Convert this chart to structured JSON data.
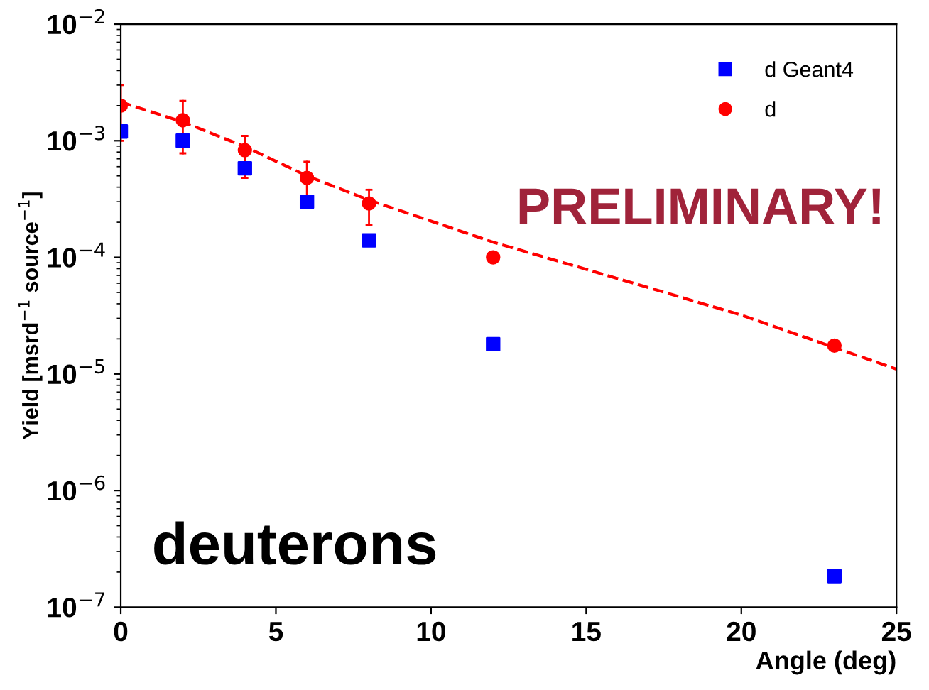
{
  "chart_data": {
    "type": "scatter",
    "xlabel": "Angle (deg)",
    "ylabel": "Yield [msrd$^{−1}$ source$^{−1}$]",
    "annotations": [
      "PRELIMINARY!",
      "deuterons"
    ],
    "log": "y",
    "xlim": [
      0,
      25
    ],
    "xticks": [
      0,
      5,
      10,
      15,
      20,
      25
    ],
    "ylim": [
      1e-07,
      0.01
    ],
    "yticks": [
      {
        "value": 1e-07,
        "label": "10$^{−7}$"
      },
      {
        "value": 1e-06,
        "label": "10$^{−6}$"
      },
      {
        "value": 1e-05,
        "label": "10$^{−5}$"
      },
      {
        "value": 0.0001,
        "label": "10$^{−4}$"
      },
      {
        "value": 0.001,
        "label": "10$^{−3}$"
      },
      {
        "value": 0.01,
        "label": "10$^{−2}$"
      }
    ],
    "grid": false,
    "legend": "top right",
    "series": [
      {
        "name": "d Geant4",
        "color": "#0000ff",
        "marker": "square",
        "x": [
          0,
          2,
          4,
          6,
          8,
          12,
          23
        ],
        "values": [
          0.0012,
          0.001,
          0.00058,
          0.0003,
          0.00014,
          1.8e-05,
          1.85e-07
        ]
      },
      {
        "name": "d",
        "color": "#ff0000",
        "marker": "circle",
        "x": [
          0,
          2,
          4,
          6,
          8,
          12,
          23
        ],
        "values": [
          0.002,
          0.0015,
          0.00083,
          0.00048,
          0.00029,
          0.0001,
          1.75e-05
        ],
        "errors": [
          [
            0.001,
            0.003
          ],
          [
            0.00078,
            0.0022
          ],
          [
            0.00048,
            0.0011
          ],
          [
            0.00033,
            0.00066
          ],
          [
            0.00019,
            0.00038
          ],
          null,
          null
        ]
      },
      {
        "type": "line",
        "color": "#ff0000",
        "line_style": "dashed",
        "marker": "none",
        "x": [
          0,
          2,
          4,
          6,
          8,
          12,
          16,
          20,
          25
        ],
        "values": [
          0.00215,
          0.00145,
          0.00089,
          0.0005,
          0.00031,
          0.000135,
          6.6e-05,
          3.2e-05,
          1.1e-05
        ]
      }
    ]
  }
}
